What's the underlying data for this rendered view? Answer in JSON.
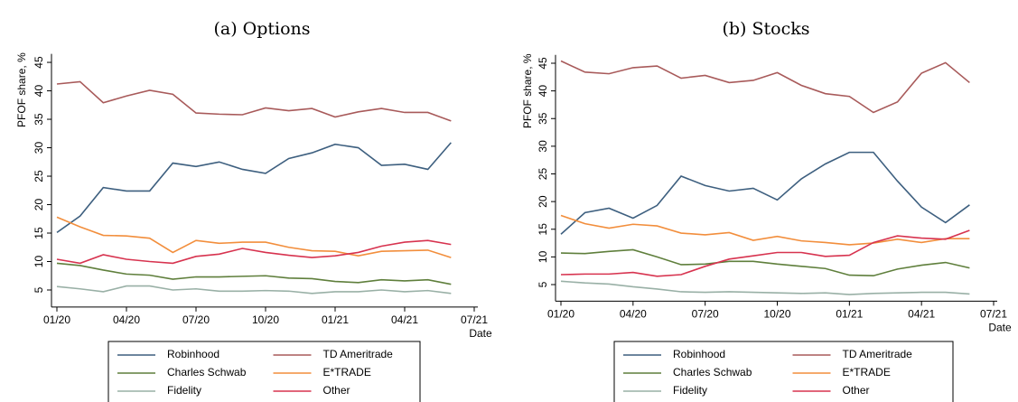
{
  "chart_data": [
    {
      "type": "line",
      "title": "(a) Options",
      "y_label": "PFOF share, %",
      "x_label": "Date",
      "x": [
        "01/20",
        "02/20",
        "03/20",
        "04/20",
        "05/20",
        "06/20",
        "07/20",
        "08/20",
        "09/20",
        "10/20",
        "11/20",
        "12/20",
        "01/21",
        "02/21",
        "03/21",
        "04/21",
        "05/21",
        "06/21"
      ],
      "xlim": [
        "01/20",
        "07/21"
      ],
      "xticks": [
        "01/20",
        "04/20",
        "07/20",
        "10/20",
        "01/21",
        "04/21",
        "07/21"
      ],
      "ylim": [
        2,
        46.5
      ],
      "yticks": [
        5,
        10,
        15,
        20,
        25,
        30,
        35,
        40,
        45
      ],
      "legend": "bottom",
      "series": [
        {
          "name": "Robinhood",
          "color": "#3d5f7f",
          "values": [
            15.1,
            18,
            23,
            22.4,
            22.4,
            27.3,
            26.7,
            27.5,
            26.2,
            25.5,
            28.1,
            29.1,
            30.6,
            30,
            26.9,
            27.1,
            26.2,
            30.9
          ]
        },
        {
          "name": "TD Ameritrade",
          "color": "#a85a5a",
          "values": [
            41.2,
            41.6,
            37.9,
            39.1,
            40.1,
            39.4,
            36.1,
            35.9,
            35.8,
            37,
            36.5,
            36.9,
            35.4,
            36.3,
            36.9,
            36.2,
            36.2,
            34.7
          ]
        },
        {
          "name": "Charles Schwab",
          "color": "#5f7f3c",
          "values": [
            9.7,
            9.3,
            8.5,
            7.8,
            7.6,
            6.9,
            7.3,
            7.3,
            7.4,
            7.5,
            7.1,
            7,
            6.5,
            6.3,
            6.8,
            6.6,
            6.8,
            6
          ]
        },
        {
          "name": "E*TRADE",
          "color": "#f28e3c",
          "values": [
            17.8,
            16.1,
            14.6,
            14.5,
            14.1,
            11.6,
            13.7,
            13.2,
            13.4,
            13.4,
            12.5,
            11.9,
            11.8,
            11,
            11.8,
            11.9,
            12,
            10.7
          ]
        },
        {
          "name": "Fidelity",
          "color": "#99b0a6",
          "values": [
            5.6,
            5.2,
            4.7,
            5.7,
            5.7,
            5,
            5.2,
            4.8,
            4.8,
            4.9,
            4.8,
            4.4,
            4.7,
            4.7,
            5,
            4.7,
            4.9,
            4.4
          ]
        },
        {
          "name": "Other",
          "color": "#d7334f",
          "values": [
            10.4,
            9.7,
            11.2,
            10.4,
            10,
            9.7,
            10.9,
            11.3,
            12.3,
            11.6,
            11.1,
            10.7,
            11,
            11.6,
            12.7,
            13.4,
            13.7,
            13
          ]
        }
      ]
    },
    {
      "type": "line",
      "title": "(b) Stocks",
      "y_label": "PFOF share, %",
      "x_label": "Date",
      "x": [
        "01/20",
        "02/20",
        "03/20",
        "04/20",
        "05/20",
        "06/20",
        "07/20",
        "08/20",
        "09/20",
        "10/20",
        "11/20",
        "12/20",
        "01/21",
        "02/21",
        "03/21",
        "04/21",
        "05/21",
        "06/21"
      ],
      "xlim": [
        "01/20",
        "07/21"
      ],
      "xticks": [
        "01/20",
        "04/20",
        "07/20",
        "10/20",
        "01/21",
        "04/21",
        "07/21"
      ],
      "ylim": [
        2,
        46.5
      ],
      "yticks": [
        5,
        10,
        15,
        20,
        25,
        30,
        35,
        40,
        45
      ],
      "legend": "bottom",
      "series": [
        {
          "name": "Robinhood",
          "color": "#3d5f7f",
          "values": [
            14.1,
            18,
            18.8,
            17,
            19.3,
            24.6,
            22.9,
            21.9,
            22.4,
            20.3,
            24.1,
            26.8,
            28.9,
            28.9,
            23.7,
            19,
            16.2,
            19.4
          ]
        },
        {
          "name": "TD Ameritrade",
          "color": "#a85a5a",
          "values": [
            45.4,
            43.4,
            43.1,
            44.2,
            44.5,
            42.3,
            42.8,
            41.5,
            41.9,
            43.3,
            41,
            39.5,
            39,
            36.1,
            38,
            43.2,
            45.1,
            41.5
          ]
        },
        {
          "name": "Charles Schwab",
          "color": "#5f7f3c",
          "values": [
            10.7,
            10.6,
            11,
            11.3,
            10,
            8.6,
            8.7,
            9.2,
            9.2,
            8.7,
            8.3,
            7.9,
            6.7,
            6.6,
            7.8,
            8.5,
            9,
            8
          ]
        },
        {
          "name": "E*TRADE",
          "color": "#f28e3c",
          "values": [
            17.5,
            16,
            15.2,
            15.9,
            15.6,
            14.3,
            14,
            14.4,
            13,
            13.7,
            12.9,
            12.6,
            12.2,
            12.5,
            13.2,
            12.6,
            13.3,
            13.3
          ]
        },
        {
          "name": "Fidelity",
          "color": "#99b0a6",
          "values": [
            5.6,
            5.3,
            5.1,
            4.6,
            4.2,
            3.7,
            3.6,
            3.7,
            3.6,
            3.5,
            3.4,
            3.5,
            3.2,
            3.4,
            3.5,
            3.6,
            3.6,
            3.3
          ]
        },
        {
          "name": "Other",
          "color": "#d7334f",
          "values": [
            6.8,
            6.9,
            6.9,
            7.2,
            6.5,
            6.8,
            8.3,
            9.6,
            10.2,
            10.8,
            10.8,
            10.1,
            10.3,
            12.6,
            13.8,
            13.4,
            13.2,
            14.8
          ]
        }
      ]
    }
  ]
}
